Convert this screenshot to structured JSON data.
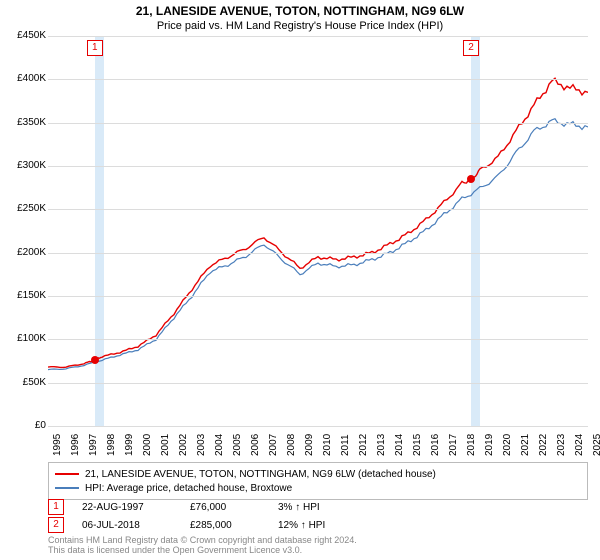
{
  "title_line1": "21, LANESIDE AVENUE, TOTON, NOTTINGHAM, NG9 6LW",
  "title_line2": "Price paid vs. HM Land Registry's House Price Index (HPI)",
  "chart": {
    "type": "line",
    "ylim": [
      0,
      450000
    ],
    "ytick_step": 50000,
    "yticks": [
      "£0",
      "£50K",
      "£100K",
      "£150K",
      "£200K",
      "£250K",
      "£300K",
      "£350K",
      "£400K",
      "£450K"
    ],
    "xlim": [
      1995,
      2025
    ],
    "xticks": [
      "1995",
      "1996",
      "1997",
      "1998",
      "1999",
      "2000",
      "2001",
      "2002",
      "2003",
      "2004",
      "2005",
      "2006",
      "2007",
      "2008",
      "2009",
      "2010",
      "2011",
      "2012",
      "2013",
      "2014",
      "2015",
      "2016",
      "2017",
      "2018",
      "2019",
      "2020",
      "2021",
      "2022",
      "2023",
      "2024",
      "2025"
    ],
    "background_color": "#ffffff",
    "grid_color": "#dcdcdc",
    "shaded_bands": [
      {
        "start": 1997.6,
        "end": 1998.1,
        "color": "#c9e1f5"
      },
      {
        "start": 2018.5,
        "end": 2019.0,
        "color": "#c9e1f5"
      }
    ],
    "series": [
      {
        "name": "red",
        "label": "21, LANESIDE AVENUE, TOTON, NOTTINGHAM, NG9 6LW (detached house)",
        "color": "#e60000",
        "line_width": 1.4,
        "data": [
          [
            1995,
            68000
          ],
          [
            1996,
            68000
          ],
          [
            1997,
            72000
          ],
          [
            1997.6,
            76000
          ],
          [
            1998,
            80000
          ],
          [
            1999,
            85000
          ],
          [
            2000,
            92000
          ],
          [
            2001,
            105000
          ],
          [
            2002,
            130000
          ],
          [
            2003,
            158000
          ],
          [
            2004,
            185000
          ],
          [
            2005,
            195000
          ],
          [
            2006,
            205000
          ],
          [
            2007,
            218000
          ],
          [
            2008,
            200000
          ],
          [
            2009,
            182000
          ],
          [
            2010,
            195000
          ],
          [
            2011,
            192000
          ],
          [
            2012,
            195000
          ],
          [
            2013,
            200000
          ],
          [
            2014,
            210000
          ],
          [
            2015,
            222000
          ],
          [
            2016,
            238000
          ],
          [
            2017,
            258000
          ],
          [
            2018,
            280000
          ],
          [
            2018.5,
            285000
          ],
          [
            2019,
            295000
          ],
          [
            2020,
            310000
          ],
          [
            2021,
            340000
          ],
          [
            2022,
            370000
          ],
          [
            2023,
            398000
          ],
          [
            2024,
            390000
          ],
          [
            2025,
            385000
          ]
        ]
      },
      {
        "name": "blue",
        "label": "HPI: Average price, detached house, Broxtowe",
        "color": "#4a7ebb",
        "line_width": 1.2,
        "data": [
          [
            1995,
            65000
          ],
          [
            1996,
            66000
          ],
          [
            1997,
            70000
          ],
          [
            1998,
            76000
          ],
          [
            1999,
            82000
          ],
          [
            2000,
            88000
          ],
          [
            2001,
            100000
          ],
          [
            2002,
            125000
          ],
          [
            2003,
            150000
          ],
          [
            2004,
            178000
          ],
          [
            2005,
            186000
          ],
          [
            2006,
            196000
          ],
          [
            2007,
            210000
          ],
          [
            2008,
            192000
          ],
          [
            2009,
            175000
          ],
          [
            2010,
            188000
          ],
          [
            2011,
            184000
          ],
          [
            2012,
            186000
          ],
          [
            2013,
            192000
          ],
          [
            2014,
            200000
          ],
          [
            2015,
            212000
          ],
          [
            2016,
            226000
          ],
          [
            2017,
            244000
          ],
          [
            2018,
            262000
          ],
          [
            2019,
            274000
          ],
          [
            2020,
            288000
          ],
          [
            2021,
            315000
          ],
          [
            2022,
            340000
          ],
          [
            2023,
            352000
          ],
          [
            2024,
            348000
          ],
          [
            2025,
            345000
          ]
        ]
      }
    ],
    "event_markers": [
      {
        "n": "1",
        "x": 1997.6,
        "y": 76000,
        "box_y_top": true
      },
      {
        "n": "2",
        "x": 2018.5,
        "y": 285000,
        "box_y_top": true
      }
    ]
  },
  "legend": {
    "rows": [
      {
        "color": "#e60000",
        "text": "21, LANESIDE AVENUE, TOTON, NOTTINGHAM, NG9 6LW (detached house)"
      },
      {
        "color": "#4a7ebb",
        "text": "HPI: Average price, detached house, Broxtowe"
      }
    ]
  },
  "events": [
    {
      "n": "1",
      "date": "22-AUG-1997",
      "price": "£76,000",
      "pct": "3% ↑ HPI"
    },
    {
      "n": "2",
      "date": "06-JUL-2018",
      "price": "£285,000",
      "pct": "12% ↑ HPI"
    }
  ],
  "footer_line1": "Contains HM Land Registry data © Crown copyright and database right 2024.",
  "footer_line2": "This data is licensed under the Open Government Licence v3.0."
}
